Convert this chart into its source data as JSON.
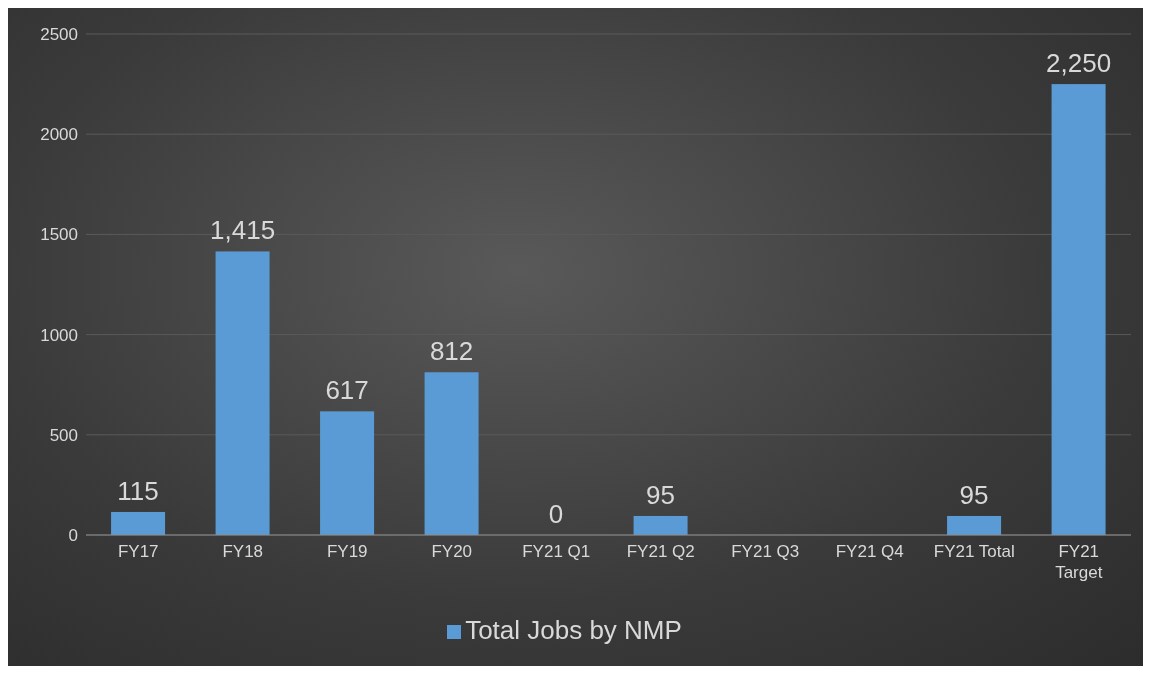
{
  "chart_data": {
    "type": "bar",
    "categories": [
      "FY17",
      "FY18",
      "FY19",
      "FY20",
      "FY21 Q1",
      "FY21 Q2",
      "FY21 Q3",
      "FY21 Q4",
      "FY21 Total",
      "FY21 Target"
    ],
    "series": [
      {
        "name": "Total Jobs by NMP",
        "color": "#5b9bd5",
        "values": [
          115,
          1415,
          617,
          812,
          0,
          95,
          null,
          null,
          95,
          2250
        ],
        "value_labels": [
          "115",
          "1,415",
          "617",
          "812",
          "0",
          "95",
          null,
          null,
          "95",
          "2,250"
        ]
      }
    ],
    "ylim": [
      0,
      2500
    ],
    "yticks": [
      0,
      500,
      1000,
      1500,
      2000,
      2500
    ],
    "grid": "y",
    "legend": "bottom"
  }
}
